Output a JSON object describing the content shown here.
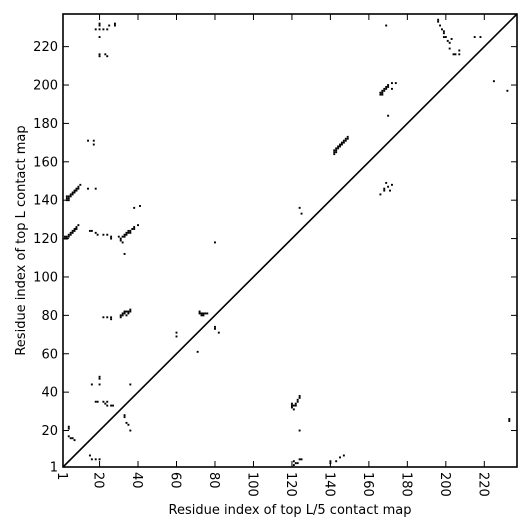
{
  "chart_data": {
    "type": "scatter",
    "title": "",
    "xlabel": "Residue index of top L/5 contact map",
    "ylabel": "Residue index of top L contact map",
    "xlim": [
      1,
      237
    ],
    "ylim": [
      1,
      237
    ],
    "x_ticks": [
      1,
      20,
      40,
      60,
      80,
      100,
      120,
      140,
      160,
      180,
      200,
      220
    ],
    "y_ticks": [
      1,
      20,
      40,
      60,
      80,
      100,
      120,
      140,
      160,
      180,
      200,
      220
    ],
    "diagonal": true,
    "grid": false,
    "legend": "none",
    "marker_color": "#000000",
    "upper_triangle_points": [
      [
        3,
        142
      ],
      [
        3,
        141
      ],
      [
        3,
        140
      ],
      [
        4,
        142
      ],
      [
        4,
        141
      ],
      [
        4,
        140
      ],
      [
        5,
        143
      ],
      [
        5,
        142
      ],
      [
        6,
        144
      ],
      [
        6,
        143
      ],
      [
        7,
        145
      ],
      [
        7,
        144
      ],
      [
        8,
        146
      ],
      [
        8,
        145
      ],
      [
        9,
        147
      ],
      [
        9,
        146
      ],
      [
        10,
        148
      ],
      [
        2,
        121
      ],
      [
        2,
        120
      ],
      [
        3,
        121
      ],
      [
        3,
        120
      ],
      [
        4,
        122
      ],
      [
        4,
        121
      ],
      [
        5,
        123
      ],
      [
        5,
        122
      ],
      [
        6,
        124
      ],
      [
        6,
        123
      ],
      [
        7,
        125
      ],
      [
        7,
        124
      ],
      [
        8,
        126
      ],
      [
        8,
        125
      ],
      [
        9,
        127
      ],
      [
        14,
        171
      ],
      [
        14,
        146
      ],
      [
        17,
        171
      ],
      [
        17,
        169
      ],
      [
        18,
        146
      ],
      [
        15,
        124
      ],
      [
        16,
        124
      ],
      [
        18,
        123
      ],
      [
        19,
        122
      ],
      [
        22,
        122
      ],
      [
        24,
        122
      ],
      [
        26,
        121
      ],
      [
        26,
        120
      ],
      [
        20,
        232
      ],
      [
        20,
        231
      ],
      [
        20,
        229
      ],
      [
        18,
        229
      ],
      [
        20,
        225
      ],
      [
        22,
        229
      ],
      [
        24,
        229
      ],
      [
        25,
        231
      ],
      [
        28,
        232
      ],
      [
        28,
        231
      ],
      [
        20,
        216
      ],
      [
        20,
        215
      ],
      [
        23,
        216
      ],
      [
        24,
        215
      ],
      [
        30,
        121
      ],
      [
        31,
        120
      ],
      [
        31,
        119
      ],
      [
        32,
        121
      ],
      [
        32,
        118
      ],
      [
        33,
        122
      ],
      [
        33,
        121
      ],
      [
        34,
        123
      ],
      [
        34,
        122
      ],
      [
        35,
        124
      ],
      [
        35,
        123
      ],
      [
        36,
        123
      ],
      [
        36,
        124
      ],
      [
        37,
        125
      ],
      [
        38,
        125
      ],
      [
        38,
        126
      ],
      [
        40,
        127
      ],
      [
        33,
        112
      ],
      [
        38,
        136
      ],
      [
        22,
        79
      ],
      [
        24,
        79
      ],
      [
        26,
        79
      ],
      [
        26,
        78
      ],
      [
        31,
        80
      ],
      [
        31,
        79
      ],
      [
        32,
        81
      ],
      [
        32,
        80
      ],
      [
        33,
        82
      ],
      [
        33,
        81
      ],
      [
        34,
        82
      ],
      [
        34,
        80
      ],
      [
        35,
        82
      ],
      [
        35,
        81
      ],
      [
        36,
        83
      ],
      [
        36,
        82
      ],
      [
        72,
        82
      ],
      [
        72,
        81
      ],
      [
        73,
        81
      ],
      [
        73,
        80
      ],
      [
        74,
        81
      ],
      [
        74,
        80
      ],
      [
        75,
        81
      ],
      [
        76,
        81
      ],
      [
        80,
        118
      ],
      [
        60,
        71
      ],
      [
        60,
        69
      ],
      [
        71,
        61
      ],
      [
        80,
        74
      ],
      [
        80,
        73
      ],
      [
        82,
        71
      ],
      [
        142,
        166
      ],
      [
        142,
        165
      ],
      [
        142,
        164
      ],
      [
        143,
        167
      ],
      [
        143,
        166
      ],
      [
        143,
        165
      ],
      [
        144,
        168
      ],
      [
        144,
        167
      ],
      [
        145,
        169
      ],
      [
        145,
        168
      ],
      [
        146,
        170
      ],
      [
        146,
        169
      ],
      [
        147,
        171
      ],
      [
        147,
        170
      ],
      [
        148,
        172
      ],
      [
        148,
        171
      ],
      [
        149,
        173
      ],
      [
        149,
        172
      ],
      [
        166,
        196
      ],
      [
        166,
        195
      ],
      [
        167,
        197
      ],
      [
        167,
        196
      ],
      [
        167,
        195
      ],
      [
        168,
        198
      ],
      [
        168,
        197
      ],
      [
        169,
        199
      ],
      [
        169,
        198
      ],
      [
        170,
        200
      ],
      [
        170,
        199
      ],
      [
        172,
        201
      ],
      [
        172,
        198
      ],
      [
        174,
        201
      ],
      [
        169,
        231
      ],
      [
        170,
        184
      ],
      [
        196,
        234
      ],
      [
        196,
        233
      ],
      [
        197,
        231
      ],
      [
        198,
        229
      ],
      [
        199,
        228
      ],
      [
        199,
        227
      ],
      [
        199,
        225
      ],
      [
        200,
        225
      ],
      [
        201,
        223
      ],
      [
        202,
        222
      ],
      [
        202,
        219
      ],
      [
        203,
        224
      ],
      [
        204,
        216
      ],
      [
        205,
        216
      ],
      [
        207,
        218
      ],
      [
        207,
        216
      ],
      [
        215,
        225
      ],
      [
        218,
        225
      ],
      [
        225,
        202
      ],
      [
        232,
        197
      ]
    ],
    "lower_triangle_points": [
      [
        4,
        22
      ],
      [
        4,
        21
      ],
      [
        4,
        17
      ],
      [
        5,
        16
      ],
      [
        6,
        16
      ],
      [
        7,
        15
      ],
      [
        15,
        7
      ],
      [
        16,
        5
      ],
      [
        18,
        5
      ],
      [
        20,
        5
      ],
      [
        16,
        44
      ],
      [
        18,
        35
      ],
      [
        19,
        35
      ],
      [
        20,
        48
      ],
      [
        20,
        47
      ],
      [
        20,
        44
      ],
      [
        22,
        35
      ],
      [
        23,
        34
      ],
      [
        24,
        33
      ],
      [
        24,
        35
      ],
      [
        26,
        33
      ],
      [
        27,
        33
      ],
      [
        33,
        28
      ],
      [
        33,
        27
      ],
      [
        34,
        24
      ],
      [
        35,
        23
      ],
      [
        36,
        20
      ],
      [
        36,
        44
      ],
      [
        41,
        137
      ],
      [
        120,
        34
      ],
      [
        120,
        33
      ],
      [
        120,
        32
      ],
      [
        121,
        33
      ],
      [
        121,
        31
      ],
      [
        122,
        34
      ],
      [
        122,
        33
      ],
      [
        123,
        36
      ],
      [
        123,
        35
      ],
      [
        124,
        38
      ],
      [
        124,
        37
      ],
      [
        121,
        4
      ],
      [
        121,
        2
      ],
      [
        122,
        3
      ],
      [
        123,
        3
      ],
      [
        124,
        5
      ],
      [
        125,
        5
      ],
      [
        124,
        20
      ],
      [
        124,
        136
      ],
      [
        125,
        133
      ],
      [
        140,
        4
      ],
      [
        140,
        3
      ],
      [
        143,
        4
      ],
      [
        145,
        6
      ],
      [
        147,
        7
      ],
      [
        166,
        143
      ],
      [
        168,
        145
      ],
      [
        168,
        146
      ],
      [
        169,
        149
      ],
      [
        170,
        147
      ],
      [
        171,
        145
      ],
      [
        172,
        148
      ],
      [
        233,
        26
      ],
      [
        233,
        25
      ]
    ]
  }
}
